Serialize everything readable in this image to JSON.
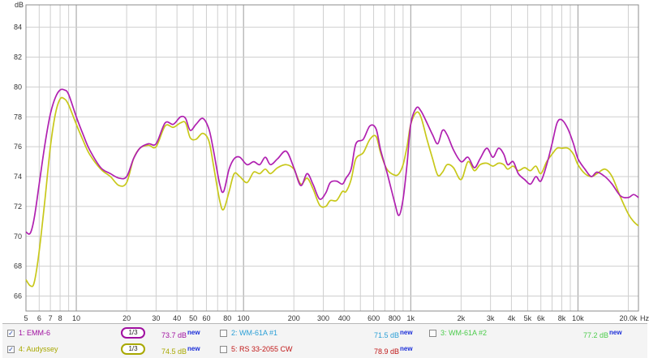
{
  "chart_data": {
    "type": "line",
    "ylabel": "dB",
    "xunit": "Hz",
    "x_scale": "log",
    "xlim": [
      5,
      23000
    ],
    "ylim": [
      65,
      85.5
    ],
    "grid": true,
    "y_ticks": [
      "66",
      "68",
      "70",
      "72",
      "74",
      "76",
      "78",
      "80",
      "82",
      "84"
    ],
    "x_tick_labels": [
      {
        "v": 5,
        "t": "5"
      },
      {
        "v": 6,
        "t": "6"
      },
      {
        "v": 7,
        "t": "7"
      },
      {
        "v": 8,
        "t": "8"
      },
      {
        "v": 10,
        "t": "10"
      },
      {
        "v": 20,
        "t": "20"
      },
      {
        "v": 30,
        "t": "30"
      },
      {
        "v": 40,
        "t": "40"
      },
      {
        "v": 50,
        "t": "50"
      },
      {
        "v": 60,
        "t": "60"
      },
      {
        "v": 80,
        "t": "80"
      },
      {
        "v": 100,
        "t": "100"
      },
      {
        "v": 200,
        "t": "200"
      },
      {
        "v": 300,
        "t": "300"
      },
      {
        "v": 400,
        "t": "400"
      },
      {
        "v": 600,
        "t": "600"
      },
      {
        "v": 800,
        "t": "800"
      },
      {
        "v": 1000,
        "t": "1k"
      },
      {
        "v": 2000,
        "t": "2k"
      },
      {
        "v": 3000,
        "t": "3k"
      },
      {
        "v": 4000,
        "t": "4k"
      },
      {
        "v": 5000,
        "t": "5k"
      },
      {
        "v": 6000,
        "t": "6k"
      },
      {
        "v": 8000,
        "t": "8k"
      },
      {
        "v": 10000,
        "t": "10k"
      },
      {
        "v": 20000,
        "t": "20.0k"
      }
    ],
    "series": [
      {
        "name": "EMM-6",
        "color": "#b020b0",
        "points": [
          [
            5,
            70.3
          ],
          [
            5.3,
            70.2
          ],
          [
            5.6,
            71.2
          ],
          [
            6,
            73.5
          ],
          [
            6.5,
            76.2
          ],
          [
            7,
            78.2
          ],
          [
            7.5,
            79.3
          ],
          [
            8,
            79.8
          ],
          [
            8.5,
            79.8
          ],
          [
            9,
            79.5
          ],
          [
            10,
            78.0
          ],
          [
            11,
            76.8
          ],
          [
            12,
            75.8
          ],
          [
            14,
            74.6
          ],
          [
            16,
            74.2
          ],
          [
            18,
            73.9
          ],
          [
            20,
            74.0
          ],
          [
            22,
            75.2
          ],
          [
            24,
            75.9
          ],
          [
            27,
            76.2
          ],
          [
            30,
            76.2
          ],
          [
            34,
            77.6
          ],
          [
            38,
            77.5
          ],
          [
            42,
            78.0
          ],
          [
            45,
            77.9
          ],
          [
            48,
            77.1
          ],
          [
            52,
            77.5
          ],
          [
            57,
            77.9
          ],
          [
            62,
            77.2
          ],
          [
            66,
            75.8
          ],
          [
            72,
            73.5
          ],
          [
            76,
            73.0
          ],
          [
            82,
            74.5
          ],
          [
            88,
            75.2
          ],
          [
            95,
            75.3
          ],
          [
            105,
            74.8
          ],
          [
            115,
            75.0
          ],
          [
            125,
            74.8
          ],
          [
            135,
            75.3
          ],
          [
            145,
            74.8
          ],
          [
            160,
            75.2
          ],
          [
            180,
            75.7
          ],
          [
            200,
            74.6
          ],
          [
            220,
            73.4
          ],
          [
            240,
            74.2
          ],
          [
            260,
            73.5
          ],
          [
            285,
            72.5
          ],
          [
            310,
            72.9
          ],
          [
            330,
            73.6
          ],
          [
            360,
            73.7
          ],
          [
            390,
            73.5
          ],
          [
            410,
            73.9
          ],
          [
            440,
            74.5
          ],
          [
            470,
            76.2
          ],
          [
            520,
            76.5
          ],
          [
            570,
            77.4
          ],
          [
            620,
            77.2
          ],
          [
            660,
            75.8
          ],
          [
            720,
            74.3
          ],
          [
            800,
            72.3
          ],
          [
            850,
            71.4
          ],
          [
            900,
            72.5
          ],
          [
            950,
            74.8
          ],
          [
            1000,
            77.5
          ],
          [
            1080,
            78.6
          ],
          [
            1150,
            78.4
          ],
          [
            1250,
            77.6
          ],
          [
            1350,
            76.8
          ],
          [
            1450,
            76.2
          ],
          [
            1550,
            77.1
          ],
          [
            1650,
            76.8
          ],
          [
            1800,
            75.8
          ],
          [
            2000,
            75.0
          ],
          [
            2200,
            75.3
          ],
          [
            2400,
            74.6
          ],
          [
            2600,
            75.2
          ],
          [
            2850,
            75.9
          ],
          [
            3100,
            75.3
          ],
          [
            3350,
            75.9
          ],
          [
            3600,
            75.5
          ],
          [
            3800,
            74.8
          ],
          [
            4100,
            75.0
          ],
          [
            4400,
            74.2
          ],
          [
            4800,
            73.8
          ],
          [
            5200,
            73.5
          ],
          [
            5600,
            74.0
          ],
          [
            6000,
            73.7
          ],
          [
            6500,
            74.8
          ],
          [
            7000,
            76.2
          ],
          [
            7500,
            77.6
          ],
          [
            8000,
            77.8
          ],
          [
            8700,
            77.2
          ],
          [
            9400,
            76.2
          ],
          [
            10000,
            75.2
          ],
          [
            11000,
            74.5
          ],
          [
            12000,
            74.0
          ],
          [
            13000,
            74.3
          ],
          [
            14500,
            74.0
          ],
          [
            16000,
            73.5
          ],
          [
            18000,
            72.7
          ],
          [
            20000,
            72.6
          ],
          [
            21500,
            72.8
          ],
          [
            23000,
            72.6
          ]
        ]
      },
      {
        "name": "Audyssey",
        "color": "#c8c81a",
        "points": [
          [
            5,
            67.1
          ],
          [
            5.3,
            66.7
          ],
          [
            5.6,
            66.9
          ],
          [
            6,
            69.0
          ],
          [
            6.5,
            72.5
          ],
          [
            7,
            76.0
          ],
          [
            7.5,
            78.2
          ],
          [
            8,
            79.2
          ],
          [
            8.5,
            79.2
          ],
          [
            9,
            78.8
          ],
          [
            10,
            77.5
          ],
          [
            11,
            76.4
          ],
          [
            12,
            75.5
          ],
          [
            14,
            74.5
          ],
          [
            16,
            74.0
          ],
          [
            18,
            73.4
          ],
          [
            20,
            73.6
          ],
          [
            22,
            75.2
          ],
          [
            24,
            75.9
          ],
          [
            27,
            76.1
          ],
          [
            30,
            76.0
          ],
          [
            34,
            77.4
          ],
          [
            38,
            77.3
          ],
          [
            42,
            77.6
          ],
          [
            45,
            77.6
          ],
          [
            48,
            76.6
          ],
          [
            52,
            76.5
          ],
          [
            57,
            76.9
          ],
          [
            62,
            76.4
          ],
          [
            66,
            74.8
          ],
          [
            72,
            72.4
          ],
          [
            76,
            71.8
          ],
          [
            82,
            73.0
          ],
          [
            88,
            74.2
          ],
          [
            95,
            74.0
          ],
          [
            105,
            73.6
          ],
          [
            115,
            74.3
          ],
          [
            125,
            74.2
          ],
          [
            135,
            74.5
          ],
          [
            145,
            74.2
          ],
          [
            160,
            74.6
          ],
          [
            180,
            74.8
          ],
          [
            200,
            74.5
          ],
          [
            220,
            73.5
          ],
          [
            240,
            73.9
          ],
          [
            260,
            73.2
          ],
          [
            285,
            72.1
          ],
          [
            310,
            72.0
          ],
          [
            330,
            72.4
          ],
          [
            360,
            72.4
          ],
          [
            390,
            73.0
          ],
          [
            410,
            73.0
          ],
          [
            440,
            73.8
          ],
          [
            470,
            75.2
          ],
          [
            520,
            75.6
          ],
          [
            570,
            76.5
          ],
          [
            620,
            76.7
          ],
          [
            660,
            75.6
          ],
          [
            720,
            74.5
          ],
          [
            800,
            74.1
          ],
          [
            850,
            74.2
          ],
          [
            900,
            74.8
          ],
          [
            950,
            76.0
          ],
          [
            1000,
            77.5
          ],
          [
            1080,
            78.3
          ],
          [
            1150,
            78.0
          ],
          [
            1250,
            76.5
          ],
          [
            1350,
            75.2
          ],
          [
            1450,
            74.1
          ],
          [
            1550,
            74.3
          ],
          [
            1650,
            74.8
          ],
          [
            1800,
            74.6
          ],
          [
            2000,
            73.8
          ],
          [
            2200,
            75.0
          ],
          [
            2400,
            74.4
          ],
          [
            2600,
            74.8
          ],
          [
            2850,
            74.9
          ],
          [
            3100,
            74.7
          ],
          [
            3350,
            74.9
          ],
          [
            3600,
            74.8
          ],
          [
            3800,
            74.5
          ],
          [
            4100,
            74.7
          ],
          [
            4400,
            74.4
          ],
          [
            4800,
            74.6
          ],
          [
            5200,
            74.4
          ],
          [
            5600,
            74.7
          ],
          [
            6000,
            74.2
          ],
          [
            6500,
            75.0
          ],
          [
            7000,
            75.5
          ],
          [
            7500,
            75.9
          ],
          [
            8000,
            75.9
          ],
          [
            8700,
            75.9
          ],
          [
            9400,
            75.5
          ],
          [
            10000,
            74.8
          ],
          [
            11000,
            74.2
          ],
          [
            12000,
            74.0
          ],
          [
            13000,
            74.2
          ],
          [
            14500,
            74.5
          ],
          [
            16000,
            74.0
          ],
          [
            18000,
            72.6
          ],
          [
            20000,
            71.5
          ],
          [
            21500,
            71.0
          ],
          [
            23000,
            70.7
          ]
        ]
      }
    ]
  },
  "legend": {
    "rows": [
      [
        {
          "checked": true,
          "label": "1: EMM-6",
          "color": "#a010a0",
          "smoothing": "1/3",
          "value": "73.7 dB",
          "new": "new"
        },
        {
          "checked": false,
          "label": "2: WM-61A #1",
          "color": "#2a9fd6",
          "value": "71.5 dB",
          "new": "new"
        },
        {
          "checked": false,
          "label": "3: WM-61A #2",
          "color": "#4ccc4c",
          "value": "77.2 dB",
          "new": "new"
        }
      ],
      [
        {
          "checked": true,
          "label": "4: Audyssey",
          "color": "#a8a800",
          "smoothing": "1/3",
          "value": "74.5 dB",
          "new": "new"
        },
        {
          "checked": false,
          "label": "5: RS 33-2055 CW",
          "color": "#c01818",
          "value": "78.9 dB",
          "new": "new"
        }
      ]
    ]
  }
}
